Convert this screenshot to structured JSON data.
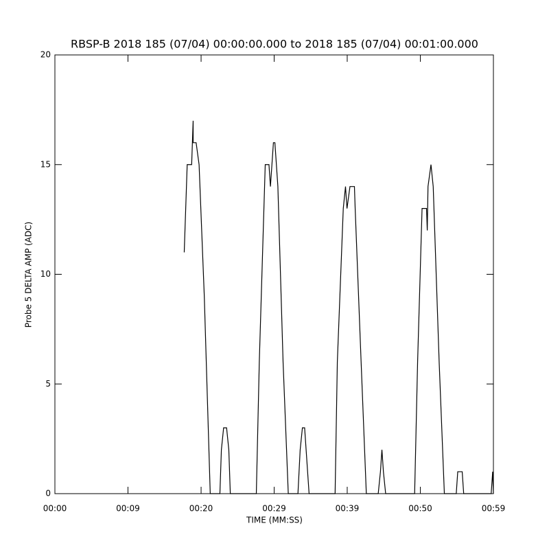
{
  "chart_data": {
    "type": "line",
    "title": "RBSP-B 2018 185 (07/04) 00:00:00.000 to 2018 185 (07/04) 00:01:00.000",
    "x_label": "TIME (MM:SS)",
    "y_label": "Probe 5 DELTA AMP (ADC)",
    "color": "#000000",
    "x": [
      17.4,
      17.8,
      18.4,
      18.6,
      18.6,
      19.0,
      19.4,
      20.1,
      20.9,
      22.2,
      22.4,
      22.7,
      23.1,
      23.4,
      23.6,
      27.1,
      27.5,
      28.3,
      28.8,
      29.0,
      29.2,
      29.4,
      29.6,
      30.0,
      30.7,
      31.4,
      32.7,
      33.0,
      33.3,
      33.6,
      33.8,
      34.2,
      37.7,
      38.0,
      38.8,
      39.1,
      39.3,
      39.7,
      40.3,
      40.4,
      41.2,
      41.9,
      43.5,
      43.8,
      44.0,
      44.2,
      44.5,
      48.4,
      48.8,
      49.4,
      50.0,
      50.1,
      50.2,
      50.6,
      50.9,
      51.7,
      52.4,
      54.0,
      54.2,
      54.8,
      55.0,
      58.7,
      58.9,
      59.0
    ],
    "values": [
      11,
      15,
      15,
      17,
      16,
      16,
      15,
      9,
      0,
      0,
      2,
      3,
      3,
      2,
      0,
      0,
      6,
      15,
      15,
      14,
      15,
      16,
      16,
      14,
      6,
      0,
      0,
      2,
      3,
      3,
      2,
      0,
      0,
      6,
      13,
      14,
      13,
      14,
      14,
      13,
      6,
      0,
      0,
      1,
      2,
      1,
      0,
      0,
      6,
      13,
      13,
      12,
      14,
      15,
      14,
      6,
      0,
      0,
      1,
      1,
      0,
      0,
      1,
      0
    ],
    "xlim": [
      0,
      59
    ],
    "xticks": [
      {
        "value": 0,
        "label": "00:00"
      },
      {
        "value": 9.83,
        "label": "00:09"
      },
      {
        "value": 19.67,
        "label": "00:20"
      },
      {
        "value": 29.5,
        "label": "00:29"
      },
      {
        "value": 39.33,
        "label": "00:39"
      },
      {
        "value": 49.17,
        "label": "00:50"
      },
      {
        "value": 59,
        "label": "00:59"
      }
    ],
    "ylim": [
      0,
      20
    ],
    "yticks": [
      0,
      5,
      10,
      15,
      20
    ]
  }
}
